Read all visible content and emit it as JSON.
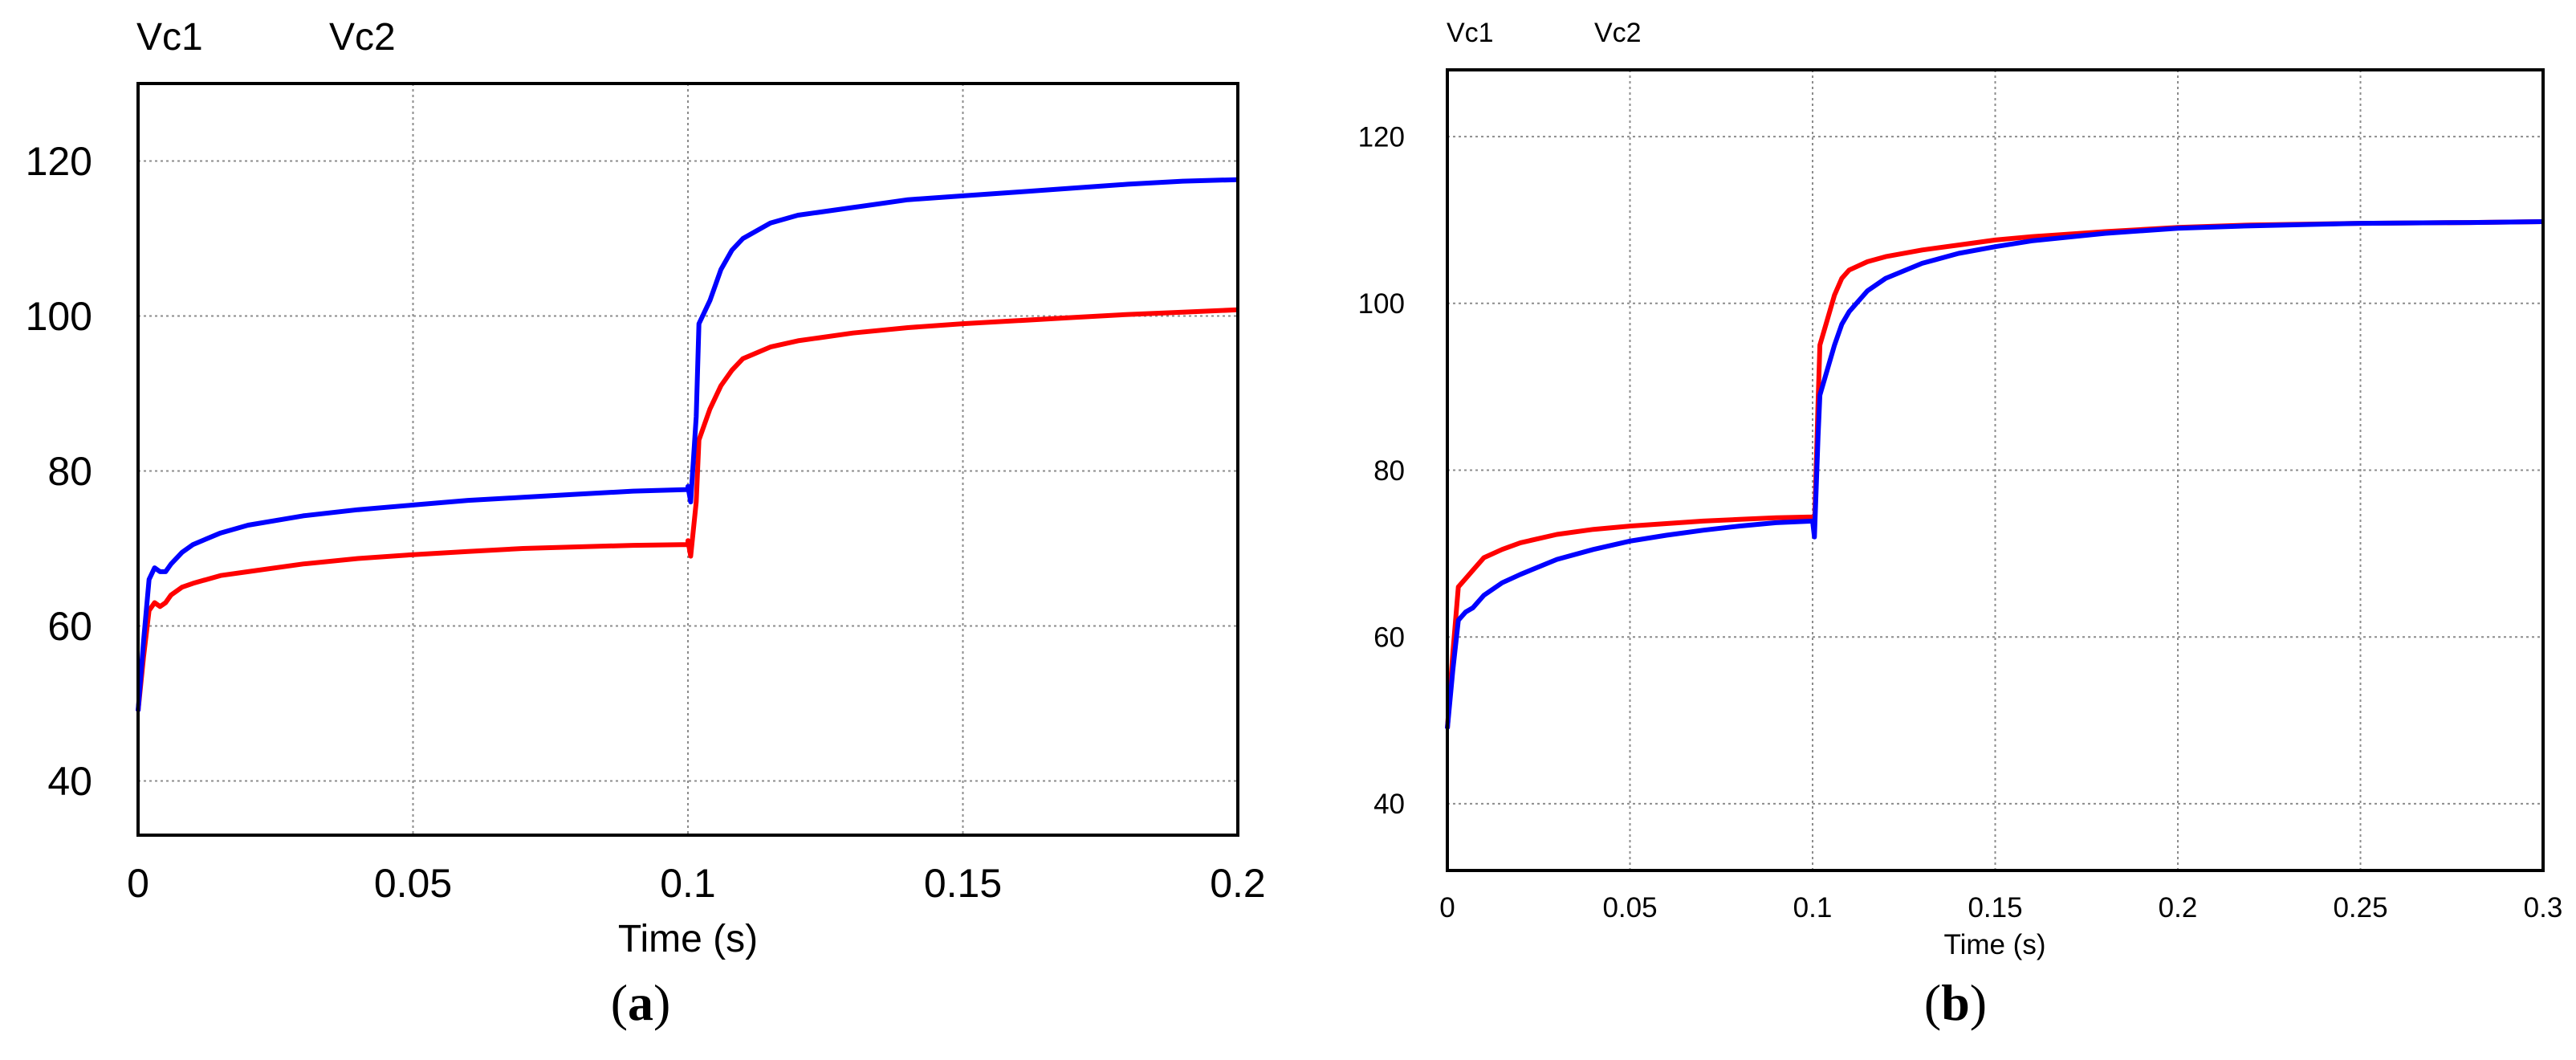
{
  "chart_data": [
    {
      "type": "line",
      "panel": "a",
      "caption_letter": "a",
      "xlabel": "Time (s)",
      "ylabel": "",
      "xlim": [
        0,
        0.2
      ],
      "ylim": [
        33,
        130
      ],
      "x_ticks": [
        0,
        0.05,
        0.1,
        0.15,
        0.2
      ],
      "x_tick_labels": [
        "0",
        "0.05",
        "0.1",
        "0.15",
        "0.2"
      ],
      "y_ticks": [
        40,
        60,
        80,
        100,
        120
      ],
      "y_tick_labels": [
        "40",
        "60",
        "80",
        "100",
        "120"
      ],
      "grid": true,
      "legend_position": "top-left, above plot",
      "series": [
        {
          "name": "Vc1",
          "color": "#ff0000",
          "points": [
            [
              0,
              49
            ],
            [
              0.001,
              56
            ],
            [
              0.002,
              62
            ],
            [
              0.003,
              63
            ],
            [
              0.004,
              62.5
            ],
            [
              0.005,
              63
            ],
            [
              0.006,
              64
            ],
            [
              0.008,
              65
            ],
            [
              0.01,
              65.5
            ],
            [
              0.015,
              66.5
            ],
            [
              0.02,
              67
            ],
            [
              0.03,
              68
            ],
            [
              0.04,
              68.7
            ],
            [
              0.05,
              69.2
            ],
            [
              0.06,
              69.6
            ],
            [
              0.07,
              70
            ],
            [
              0.08,
              70.2
            ],
            [
              0.09,
              70.4
            ],
            [
              0.1,
              70.5
            ],
            [
              0.1,
              71
            ],
            [
              0.1005,
              69
            ],
            [
              0.1015,
              76
            ],
            [
              0.102,
              84
            ],
            [
              0.104,
              88
            ],
            [
              0.106,
              91
            ],
            [
              0.108,
              93
            ],
            [
              0.11,
              94.5
            ],
            [
              0.115,
              96
            ],
            [
              0.12,
              96.8
            ],
            [
              0.13,
              97.8
            ],
            [
              0.14,
              98.5
            ],
            [
              0.15,
              99
            ],
            [
              0.16,
              99.4
            ],
            [
              0.17,
              99.8
            ],
            [
              0.18,
              100.2
            ],
            [
              0.19,
              100.5
            ],
            [
              0.2,
              100.8
            ]
          ]
        },
        {
          "name": "Vc2",
          "color": "#0000ff",
          "points": [
            [
              0,
              49
            ],
            [
              0.001,
              58
            ],
            [
              0.002,
              66
            ],
            [
              0.003,
              67.5
            ],
            [
              0.004,
              67
            ],
            [
              0.005,
              67
            ],
            [
              0.006,
              68
            ],
            [
              0.008,
              69.5
            ],
            [
              0.01,
              70.5
            ],
            [
              0.015,
              72
            ],
            [
              0.02,
              73
            ],
            [
              0.03,
              74.2
            ],
            [
              0.04,
              75
            ],
            [
              0.05,
              75.6
            ],
            [
              0.06,
              76.2
            ],
            [
              0.07,
              76.6
            ],
            [
              0.08,
              77
            ],
            [
              0.09,
              77.4
            ],
            [
              0.1,
              77.6
            ],
            [
              0.1,
              78
            ],
            [
              0.1005,
              76
            ],
            [
              0.1015,
              87
            ],
            [
              0.102,
              99
            ],
            [
              0.104,
              102
            ],
            [
              0.106,
              106
            ],
            [
              0.108,
              108.5
            ],
            [
              0.11,
              110
            ],
            [
              0.115,
              112
            ],
            [
              0.12,
              113
            ],
            [
              0.13,
              114
            ],
            [
              0.14,
              115
            ],
            [
              0.15,
              115.5
            ],
            [
              0.16,
              116
            ],
            [
              0.17,
              116.5
            ],
            [
              0.18,
              117
            ],
            [
              0.19,
              117.4
            ],
            [
              0.2,
              117.6
            ]
          ]
        }
      ]
    },
    {
      "type": "line",
      "panel": "b",
      "caption_letter": "b",
      "xlabel": "Time (s)",
      "ylabel": "",
      "xlim": [
        0,
        0.3
      ],
      "ylim": [
        32,
        128
      ],
      "x_ticks": [
        0,
        0.05,
        0.1,
        0.15,
        0.2,
        0.25,
        0.3
      ],
      "x_tick_labels": [
        "0",
        "0.05",
        "0.1",
        "0.15",
        "0.2",
        "0.25",
        "0.3"
      ],
      "y_ticks": [
        40,
        60,
        80,
        100,
        120
      ],
      "y_tick_labels": [
        "40",
        "60",
        "80",
        "100",
        "120"
      ],
      "grid": true,
      "legend_position": "top-left, above plot",
      "series": [
        {
          "name": "Vc1",
          "color": "#ff0000",
          "points": [
            [
              0,
              49
            ],
            [
              0.0015,
              58
            ],
            [
              0.003,
              66
            ],
            [
              0.005,
              67
            ],
            [
              0.007,
              68
            ],
            [
              0.01,
              69.5
            ],
            [
              0.015,
              70.5
            ],
            [
              0.02,
              71.3
            ],
            [
              0.03,
              72.3
            ],
            [
              0.04,
              72.9
            ],
            [
              0.05,
              73.3
            ],
            [
              0.06,
              73.6
            ],
            [
              0.07,
              73.9
            ],
            [
              0.08,
              74.1
            ],
            [
              0.09,
              74.3
            ],
            [
              0.1,
              74.4
            ],
            [
              0.1005,
              73
            ],
            [
              0.1015,
              88
            ],
            [
              0.102,
              95
            ],
            [
              0.104,
              98
            ],
            [
              0.106,
              101
            ],
            [
              0.108,
              103
            ],
            [
              0.11,
              104
            ],
            [
              0.115,
              105
            ],
            [
              0.12,
              105.6
            ],
            [
              0.13,
              106.4
            ],
            [
              0.14,
              107
            ],
            [
              0.15,
              107.6
            ],
            [
              0.16,
              108
            ],
            [
              0.18,
              108.6
            ],
            [
              0.2,
              109.1
            ],
            [
              0.22,
              109.4
            ],
            [
              0.25,
              109.6
            ],
            [
              0.28,
              109.7
            ],
            [
              0.3,
              109.8
            ]
          ]
        },
        {
          "name": "Vc2",
          "color": "#0000ff",
          "points": [
            [
              0,
              49
            ],
            [
              0.0015,
              56
            ],
            [
              0.003,
              62
            ],
            [
              0.005,
              63
            ],
            [
              0.007,
              63.5
            ],
            [
              0.01,
              65
            ],
            [
              0.015,
              66.5
            ],
            [
              0.02,
              67.5
            ],
            [
              0.03,
              69.3
            ],
            [
              0.04,
              70.5
            ],
            [
              0.05,
              71.5
            ],
            [
              0.06,
              72.2
            ],
            [
              0.07,
              72.8
            ],
            [
              0.08,
              73.3
            ],
            [
              0.09,
              73.7
            ],
            [
              0.1,
              73.9
            ],
            [
              0.1005,
              72
            ],
            [
              0.1015,
              84
            ],
            [
              0.102,
              89
            ],
            [
              0.104,
              92
            ],
            [
              0.106,
              95
            ],
            [
              0.108,
              97.5
            ],
            [
              0.11,
              99
            ],
            [
              0.115,
              101.5
            ],
            [
              0.12,
              103
            ],
            [
              0.13,
              104.8
            ],
            [
              0.14,
              106
            ],
            [
              0.15,
              106.8
            ],
            [
              0.16,
              107.5
            ],
            [
              0.18,
              108.4
            ],
            [
              0.2,
              109
            ],
            [
              0.22,
              109.3
            ],
            [
              0.25,
              109.6
            ],
            [
              0.28,
              109.7
            ],
            [
              0.3,
              109.8
            ]
          ]
        }
      ]
    }
  ]
}
